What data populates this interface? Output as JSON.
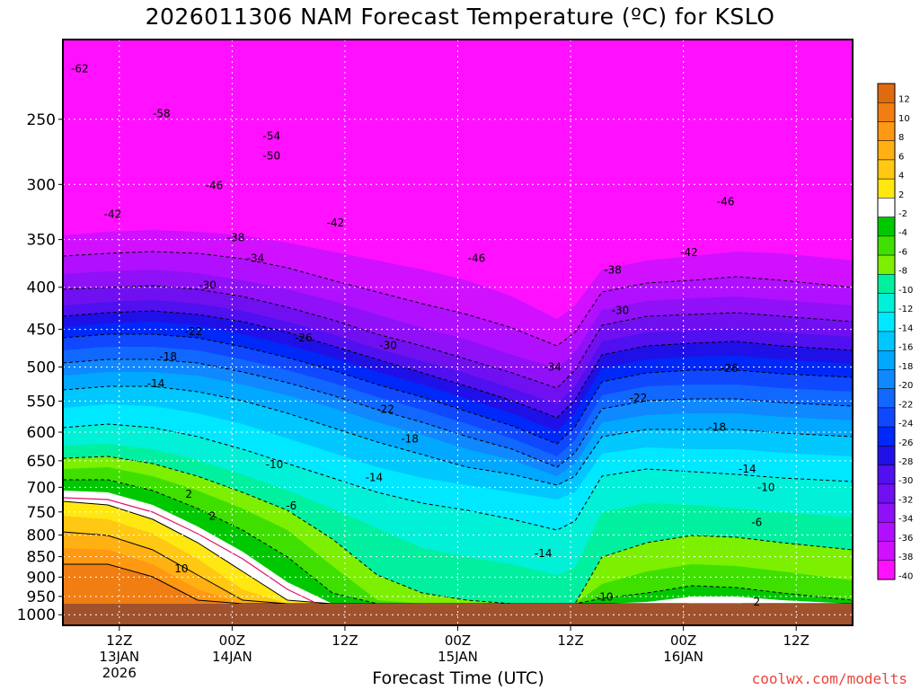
{
  "chart_data": {
    "type": "heatmap",
    "title": "2026011306 NAM Forecast Temperature (ºC) for KSLO",
    "xlabel": "Forecast Time (UTC)",
    "ylabel": "",
    "credit": "coolwx.com/modelts",
    "y_axis": {
      "scale": "log-pressure",
      "ticks": [
        250,
        300,
        350,
        400,
        450,
        500,
        550,
        600,
        650,
        700,
        750,
        800,
        850,
        900,
        950,
        1000
      ],
      "range": [
        200,
        1030
      ]
    },
    "x_axis": {
      "range_hours": [
        0,
        84
      ],
      "ticks": [
        {
          "hour": 6,
          "lines": [
            "12Z",
            "13JAN",
            "2026"
          ]
        },
        {
          "hour": 18,
          "lines": [
            "00Z",
            "14JAN"
          ]
        },
        {
          "hour": 30,
          "lines": [
            "12Z"
          ]
        },
        {
          "hour": 42,
          "lines": [
            "00Z",
            "15JAN"
          ]
        },
        {
          "hour": 54,
          "lines": [
            "12Z"
          ]
        },
        {
          "hour": 66,
          "lines": [
            "00Z",
            "16JAN"
          ]
        },
        {
          "hour": 78,
          "lines": [
            "12Z"
          ]
        }
      ]
    },
    "colorbar": {
      "labels": [
        "12",
        "10",
        "8",
        "6",
        "4",
        "2",
        "-2",
        "-4",
        "-6",
        "-8",
        "-10",
        "-12",
        "-14",
        "-16",
        "-18",
        "-20",
        "-22",
        "-24",
        "-26",
        "-28",
        "-30",
        "-32",
        "-34",
        "-36",
        "-38",
        "-40"
      ],
      "colors": [
        "#e06a10",
        "#f07e12",
        "#ff9812",
        "#ffb012",
        "#ffc812",
        "#ffe812",
        "#ffffff",
        "#00c800",
        "#3fe000",
        "#7cf000",
        "#00f0a0",
        "#00f0d8",
        "#00e8ff",
        "#00c8ff",
        "#00a8ff",
        "#1088ff",
        "#1068ff",
        "#1048ff",
        "#0028f8",
        "#2010e8",
        "#5010f0",
        "#7010f0",
        "#9010f8",
        "#b010ff",
        "#d010ff",
        "#ff10ff"
      ]
    },
    "contour_labels": [
      {
        "text": "-62",
        "h": 1.8,
        "p": 217
      },
      {
        "text": "-58",
        "h": 10.5,
        "p": 246
      },
      {
        "text": "-54",
        "h": 22.2,
        "p": 262
      },
      {
        "text": "-50",
        "h": 22.2,
        "p": 277
      },
      {
        "text": "-46",
        "h": 16.1,
        "p": 301
      },
      {
        "text": "-42",
        "h": 5.3,
        "p": 326
      },
      {
        "text": "-38",
        "h": 18.4,
        "p": 348
      },
      {
        "text": "-34",
        "h": 20.5,
        "p": 369
      },
      {
        "text": "-30",
        "h": 15.4,
        "p": 398
      },
      {
        "text": "-22",
        "h": 13.9,
        "p": 453
      },
      {
        "text": "-18",
        "h": 11.2,
        "p": 486
      },
      {
        "text": "-14",
        "h": 9.9,
        "p": 524
      },
      {
        "text": "-26",
        "h": 25.6,
        "p": 461
      },
      {
        "text": "-10",
        "h": 22.5,
        "p": 657
      },
      {
        "text": "-6",
        "h": 24.3,
        "p": 737
      },
      {
        "text": "2",
        "h": 13.4,
        "p": 714
      },
      {
        "text": "2",
        "h": 15.9,
        "p": 759
      },
      {
        "text": "10",
        "h": 12.6,
        "p": 879
      },
      {
        "text": "-42",
        "h": 29.0,
        "p": 334
      },
      {
        "text": "-46",
        "h": 44.0,
        "p": 369
      },
      {
        "text": "-30",
        "h": 34.6,
        "p": 471
      },
      {
        "text": "-22",
        "h": 34.3,
        "p": 563
      },
      {
        "text": "-18",
        "h": 36.9,
        "p": 611
      },
      {
        "text": "-14",
        "h": 33.1,
        "p": 681
      },
      {
        "text": "-34",
        "h": 52.1,
        "p": 500
      },
      {
        "text": "-38",
        "h": 58.5,
        "p": 381
      },
      {
        "text": "-30",
        "h": 59.3,
        "p": 427
      },
      {
        "text": "-22",
        "h": 61.2,
        "p": 545
      },
      {
        "text": "-14",
        "h": 51.1,
        "p": 842
      },
      {
        "text": "-10",
        "h": 57.6,
        "p": 952
      },
      {
        "text": "-46",
        "h": 70.5,
        "p": 315
      },
      {
        "text": "-42",
        "h": 66.6,
        "p": 363
      },
      {
        "text": "-26",
        "h": 70.9,
        "p": 502
      },
      {
        "text": "-18",
        "h": 69.6,
        "p": 592
      },
      {
        "text": "-14",
        "h": 72.8,
        "p": 665
      },
      {
        "text": "-10",
        "h": 74.8,
        "p": 700
      },
      {
        "text": "-6",
        "h": 73.8,
        "p": 772
      },
      {
        "text": "2",
        "h": 73.8,
        "p": 965
      }
    ]
  }
}
